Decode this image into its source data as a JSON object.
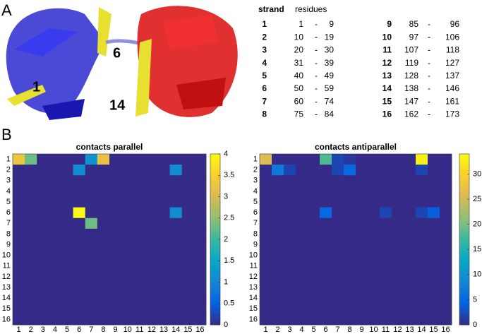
{
  "panel_labels": [
    "A",
    "B"
  ],
  "structure_labels": [
    "6",
    "1",
    "14"
  ],
  "table": {
    "headers": [
      "strand",
      "residues"
    ],
    "separator": "-",
    "rows": [
      [
        1,
        1,
        9
      ],
      [
        2,
        10,
        19
      ],
      [
        3,
        20,
        30
      ],
      [
        4,
        31,
        39
      ],
      [
        5,
        40,
        49
      ],
      [
        6,
        50,
        59
      ],
      [
        7,
        60,
        74
      ],
      [
        8,
        75,
        84
      ],
      [
        9,
        85,
        96
      ],
      [
        10,
        97,
        106
      ],
      [
        11,
        107,
        118
      ],
      [
        12,
        119,
        127
      ],
      [
        13,
        128,
        137
      ],
      [
        14,
        138,
        146
      ],
      [
        15,
        147,
        161
      ],
      [
        16,
        162,
        173
      ]
    ]
  },
  "chart_data": [
    {
      "type": "heatmap",
      "title": "contacts parallel",
      "colormap": "parula",
      "categories": [
        1,
        2,
        3,
        4,
        5,
        6,
        7,
        8,
        9,
        10,
        11,
        12,
        13,
        14,
        15,
        16
      ],
      "clim": [
        0,
        4
      ],
      "cticks": [
        0,
        0.5,
        1,
        1.5,
        2,
        2.5,
        3,
        3.5,
        4
      ],
      "values": [
        [
          3.3,
          2.3,
          0,
          0,
          0,
          0,
          1.2,
          3.2,
          0,
          0,
          0,
          0,
          0,
          0,
          0,
          0
        ],
        [
          0,
          0,
          0,
          0,
          0,
          1.1,
          0,
          0,
          0,
          0,
          0,
          0,
          0,
          1.1,
          0,
          0
        ],
        [
          0,
          0,
          0,
          0,
          0,
          0,
          0,
          0,
          0,
          0,
          0,
          0,
          0,
          0,
          0,
          0
        ],
        [
          0,
          0,
          0,
          0,
          0,
          0,
          0,
          0,
          0,
          0,
          0,
          0,
          0,
          0,
          0,
          0
        ],
        [
          0,
          0,
          0,
          0,
          0,
          0,
          0,
          0,
          0,
          0,
          0,
          0,
          0,
          0,
          0,
          0
        ],
        [
          0,
          0,
          0,
          0,
          0,
          4,
          0,
          0,
          0,
          0,
          0,
          0,
          0,
          1.1,
          0,
          0
        ],
        [
          0,
          0,
          0,
          0,
          0,
          0,
          2.3,
          0,
          0,
          0,
          0,
          0,
          0,
          0,
          0,
          0
        ],
        [
          0,
          0,
          0,
          0,
          0,
          0,
          0,
          0,
          0,
          0,
          0,
          0,
          0,
          0,
          0,
          0
        ],
        [
          0,
          0,
          0,
          0,
          0,
          0,
          0,
          0,
          0,
          0,
          0,
          0,
          0,
          0,
          0,
          0
        ],
        [
          0,
          0,
          0,
          0,
          0,
          0,
          0,
          0,
          0,
          0,
          0,
          0,
          0,
          0,
          0,
          0
        ],
        [
          0,
          0,
          0,
          0,
          0,
          0,
          0,
          0,
          0,
          0,
          0,
          0,
          0,
          0,
          0,
          0
        ],
        [
          0,
          0,
          0,
          0,
          0,
          0,
          0,
          0,
          0,
          0,
          0,
          0,
          0,
          0,
          0,
          0
        ],
        [
          0,
          0,
          0,
          0,
          0,
          0,
          0,
          0,
          0,
          0,
          0,
          0,
          0,
          0,
          0,
          0
        ],
        [
          0,
          0,
          0,
          0,
          0,
          0,
          0,
          0,
          0,
          0,
          0,
          0,
          0,
          0,
          0,
          0
        ],
        [
          0,
          0,
          0,
          0,
          0,
          0,
          0,
          0,
          0,
          0,
          0,
          0,
          0,
          0,
          0,
          0
        ],
        [
          0,
          0,
          0,
          0,
          0,
          0,
          0,
          0,
          0,
          0,
          0,
          0,
          0,
          0,
          0,
          0
        ]
      ]
    },
    {
      "type": "heatmap",
      "title": "contacts antiparallel",
      "colormap": "parula",
      "categories": [
        1,
        2,
        3,
        4,
        5,
        6,
        7,
        8,
        9,
        10,
        11,
        12,
        13,
        14,
        15,
        16
      ],
      "clim": [
        0,
        34
      ],
      "cticks": [
        0,
        5,
        10,
        15,
        20,
        25,
        30
      ],
      "values": [
        [
          26,
          0,
          0,
          0,
          0,
          18,
          2,
          1,
          0,
          0,
          0,
          0,
          0,
          33,
          0,
          0
        ],
        [
          0,
          7,
          2,
          0,
          0,
          0,
          2,
          5,
          0,
          0,
          0,
          0,
          0,
          2,
          0,
          0
        ],
        [
          0,
          0,
          0,
          0,
          0,
          0,
          0,
          0,
          0,
          0,
          0,
          0,
          0,
          0,
          0,
          0
        ],
        [
          0,
          0,
          0,
          0,
          0,
          0,
          0,
          0,
          0,
          0,
          0,
          0,
          0,
          0,
          0,
          0
        ],
        [
          0,
          0,
          0,
          0,
          0,
          0,
          0,
          0,
          0,
          0,
          0,
          0,
          0,
          0,
          0,
          0
        ],
        [
          0,
          0,
          0,
          0,
          0,
          5,
          0,
          0,
          0,
          0,
          2,
          0,
          0,
          2,
          4,
          0
        ],
        [
          0,
          0,
          0,
          0,
          0,
          0,
          0,
          0,
          0,
          0,
          0,
          0,
          0,
          0,
          0,
          0
        ],
        [
          0,
          0,
          0,
          0,
          0,
          0,
          0,
          0,
          0,
          0,
          0,
          0,
          0,
          0,
          0,
          0
        ],
        [
          0,
          0,
          0,
          0,
          0,
          0,
          0,
          0,
          0,
          0,
          0,
          0,
          0,
          0,
          0,
          0
        ],
        [
          0,
          0,
          0,
          0,
          0,
          0,
          0,
          0,
          0,
          0,
          0,
          0,
          0,
          0,
          0,
          0
        ],
        [
          0,
          0,
          0,
          0,
          0,
          0,
          0,
          0,
          0,
          0,
          0,
          0,
          0,
          0,
          0,
          0
        ],
        [
          0,
          0,
          0,
          0,
          0,
          0,
          0,
          0,
          0,
          0,
          0,
          0,
          0,
          0,
          0,
          0
        ],
        [
          0,
          0,
          0,
          0,
          0,
          0,
          0,
          0,
          0,
          0,
          0,
          0,
          0,
          0,
          0,
          0
        ],
        [
          0,
          0,
          0,
          0,
          0,
          0,
          0,
          0,
          0,
          0,
          0,
          0,
          0,
          0,
          0,
          0
        ],
        [
          0,
          0,
          0,
          0,
          0,
          0,
          0,
          0,
          0,
          0,
          0,
          0,
          0,
          0,
          0,
          0
        ],
        [
          0,
          0,
          0,
          0,
          0,
          0,
          0,
          0,
          0,
          0,
          0,
          0,
          0,
          0,
          0,
          0
        ]
      ]
    }
  ]
}
